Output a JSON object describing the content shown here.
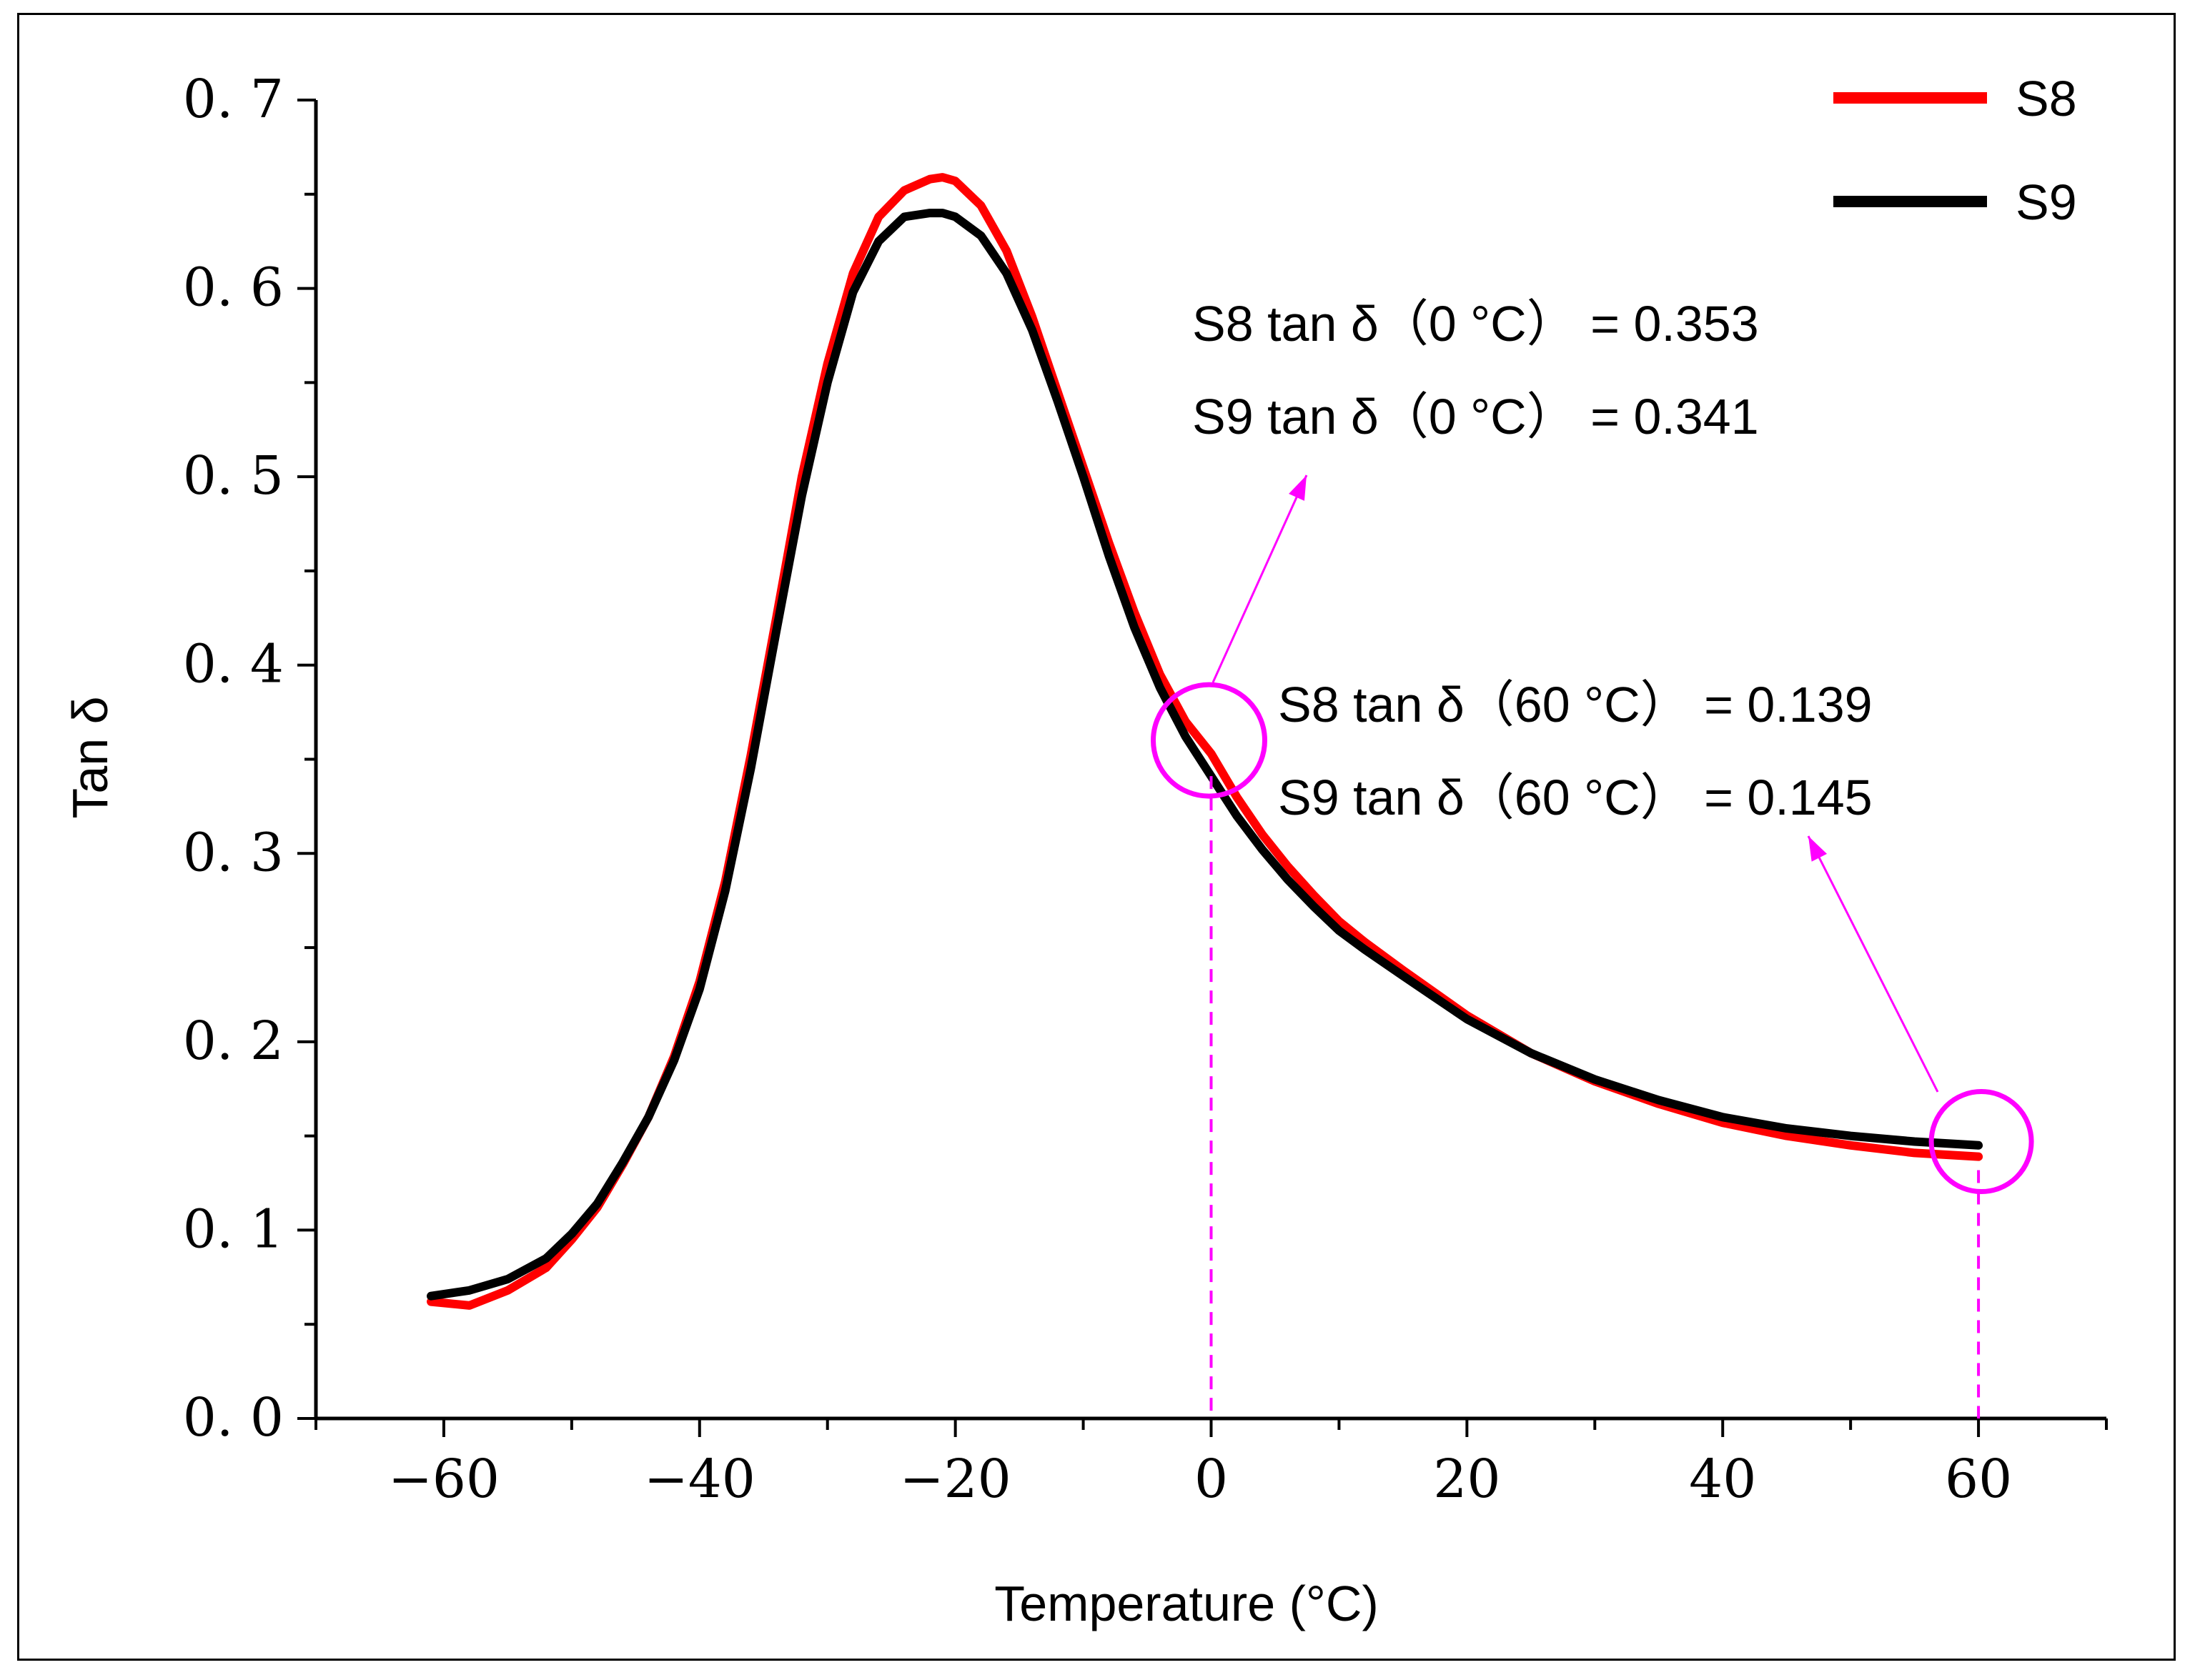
{
  "chart_data": {
    "type": "line",
    "title": "",
    "xlabel": "Temperature (°C)",
    "ylabel": "Tan δ",
    "xlim": [
      -70,
      70
    ],
    "ylim": [
      0.0,
      0.7
    ],
    "x_ticks": [
      -60,
      -40,
      -20,
      0,
      20,
      40,
      60
    ],
    "x_tick_labels": [
      "−60",
      "−40",
      "−20",
      "0",
      "20",
      "40",
      "60"
    ],
    "y_ticks": [
      0.0,
      0.1,
      0.2,
      0.3,
      0.4,
      0.5,
      0.6,
      0.7
    ],
    "y_tick_labels": [
      "0. 0",
      "0. 1",
      "0. 2",
      "0. 3",
      "0. 4",
      "0. 5",
      "0. 6",
      "0. 7"
    ],
    "legend_position": "top-right",
    "series": [
      {
        "name": "S8",
        "color": "#ff0000",
        "x": [
          -61,
          -58,
          -55,
          -52,
          -50,
          -48,
          -46,
          -44,
          -42,
          -40,
          -38,
          -36,
          -34,
          -32,
          -30,
          -28,
          -26,
          -24,
          -22,
          -21,
          -20,
          -18,
          -16,
          -14,
          -12,
          -10,
          -8,
          -6,
          -4,
          -2,
          0,
          2,
          4,
          6,
          8,
          10,
          12,
          15,
          20,
          25,
          30,
          35,
          40,
          45,
          50,
          55,
          60
        ],
        "values": [
          0.062,
          0.06,
          0.068,
          0.08,
          0.095,
          0.112,
          0.135,
          0.16,
          0.192,
          0.232,
          0.285,
          0.352,
          0.425,
          0.5,
          0.56,
          0.608,
          0.638,
          0.652,
          0.658,
          0.659,
          0.657,
          0.644,
          0.62,
          0.585,
          0.545,
          0.505,
          0.465,
          0.428,
          0.395,
          0.37,
          0.353,
          0.33,
          0.31,
          0.293,
          0.278,
          0.264,
          0.253,
          0.238,
          0.214,
          0.194,
          0.179,
          0.167,
          0.157,
          0.15,
          0.145,
          0.141,
          0.139
        ]
      },
      {
        "name": "S9",
        "color": "#000000",
        "x": [
          -61,
          -58,
          -55,
          -52,
          -50,
          -48,
          -46,
          -44,
          -42,
          -40,
          -38,
          -36,
          -34,
          -32,
          -30,
          -28,
          -26,
          -24,
          -22,
          -21,
          -20,
          -18,
          -16,
          -14,
          -12,
          -10,
          -8,
          -6,
          -4,
          -2,
          0,
          2,
          4,
          6,
          8,
          10,
          12,
          15,
          20,
          25,
          30,
          35,
          40,
          45,
          50,
          55,
          60
        ],
        "values": [
          0.065,
          0.068,
          0.074,
          0.085,
          0.098,
          0.114,
          0.136,
          0.16,
          0.19,
          0.228,
          0.28,
          0.345,
          0.418,
          0.49,
          0.55,
          0.598,
          0.625,
          0.638,
          0.64,
          0.64,
          0.638,
          0.628,
          0.608,
          0.578,
          0.54,
          0.5,
          0.458,
          0.42,
          0.388,
          0.362,
          0.341,
          0.32,
          0.302,
          0.286,
          0.272,
          0.259,
          0.249,
          0.235,
          0.212,
          0.194,
          0.18,
          0.169,
          0.16,
          0.154,
          0.15,
          0.147,
          0.145
        ]
      }
    ],
    "annotations": [
      {
        "id": "anno-0c-s8",
        "text": "S8 tan δ（0 °C） = 0.353"
      },
      {
        "id": "anno-0c-s9",
        "text": "S9 tan δ（0 °C） = 0.341"
      },
      {
        "id": "anno-60c-s8",
        "text": "S8 tan δ（60 °C） = 0.139"
      },
      {
        "id": "anno-60c-s9",
        "text": "S9 tan δ（60 °C） = 0.145"
      }
    ],
    "markers": [
      {
        "x": 0,
        "y": 0.36
      },
      {
        "x": 60,
        "y": 0.147
      }
    ],
    "highlight_color": "#ff00ff"
  }
}
